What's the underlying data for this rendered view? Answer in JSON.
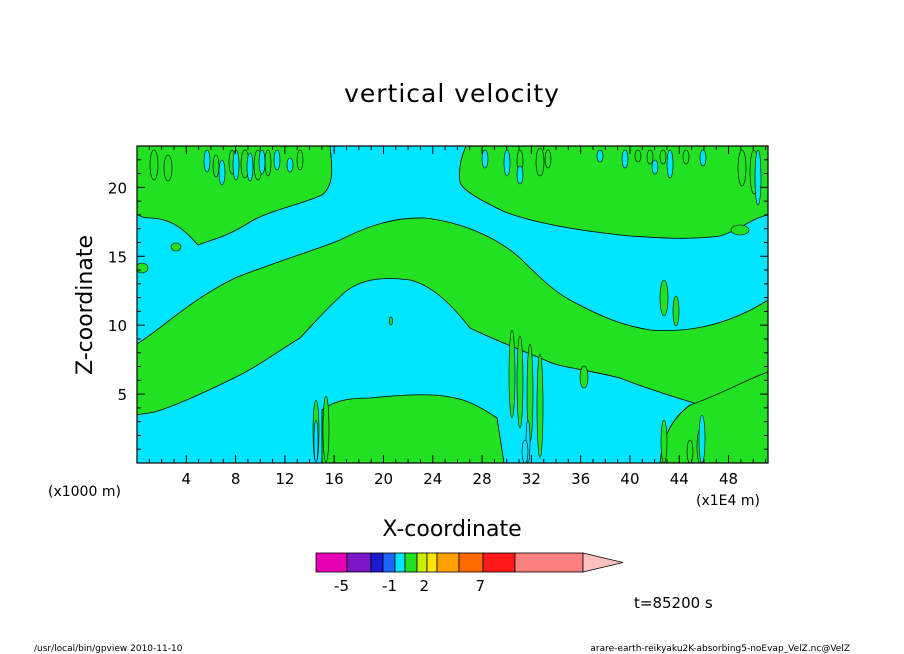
{
  "chart_data": {
    "type": "heatmap",
    "title": "vertical velocity",
    "xlabel": "X-coordinate",
    "ylabel": "Z-coordinate",
    "x_unit_left": "(x1000 m)",
    "x_unit_right": "(x1E4 m)",
    "xlim": [
      0,
      51.2
    ],
    "ylim": [
      0,
      23
    ],
    "x_ticks": [
      4,
      8,
      12,
      16,
      20,
      24,
      28,
      32,
      36,
      40,
      44,
      48
    ],
    "y_ticks": [
      5,
      10,
      15,
      20
    ],
    "colors": {
      "negative": "#00e5ff",
      "positive": "#22e022"
    },
    "colorbar": {
      "colors": [
        "#e600b4",
        "#7a18c8",
        "#1a1ad2",
        "#1e64ff",
        "#00e5ff",
        "#22e022",
        "#c8f000",
        "#ffe600",
        "#ffa000",
        "#ff6a00",
        "#ff1a1a",
        "#ff8080",
        "#ffc0c0"
      ],
      "labels": [
        {
          "text": "-5",
          "after": 1
        },
        {
          "text": "-1",
          "after": 4
        },
        {
          "text": "2",
          "after": 7
        },
        {
          "text": "7",
          "after": 10
        }
      ]
    },
    "time_label": "t=85200 s"
  },
  "footer": {
    "left": "/usr/local/bin/gpview  2010-11-10",
    "right": "arare-earth-reikyaku2K-absorbing5-noEvap_VelZ.nc@VelZ"
  }
}
